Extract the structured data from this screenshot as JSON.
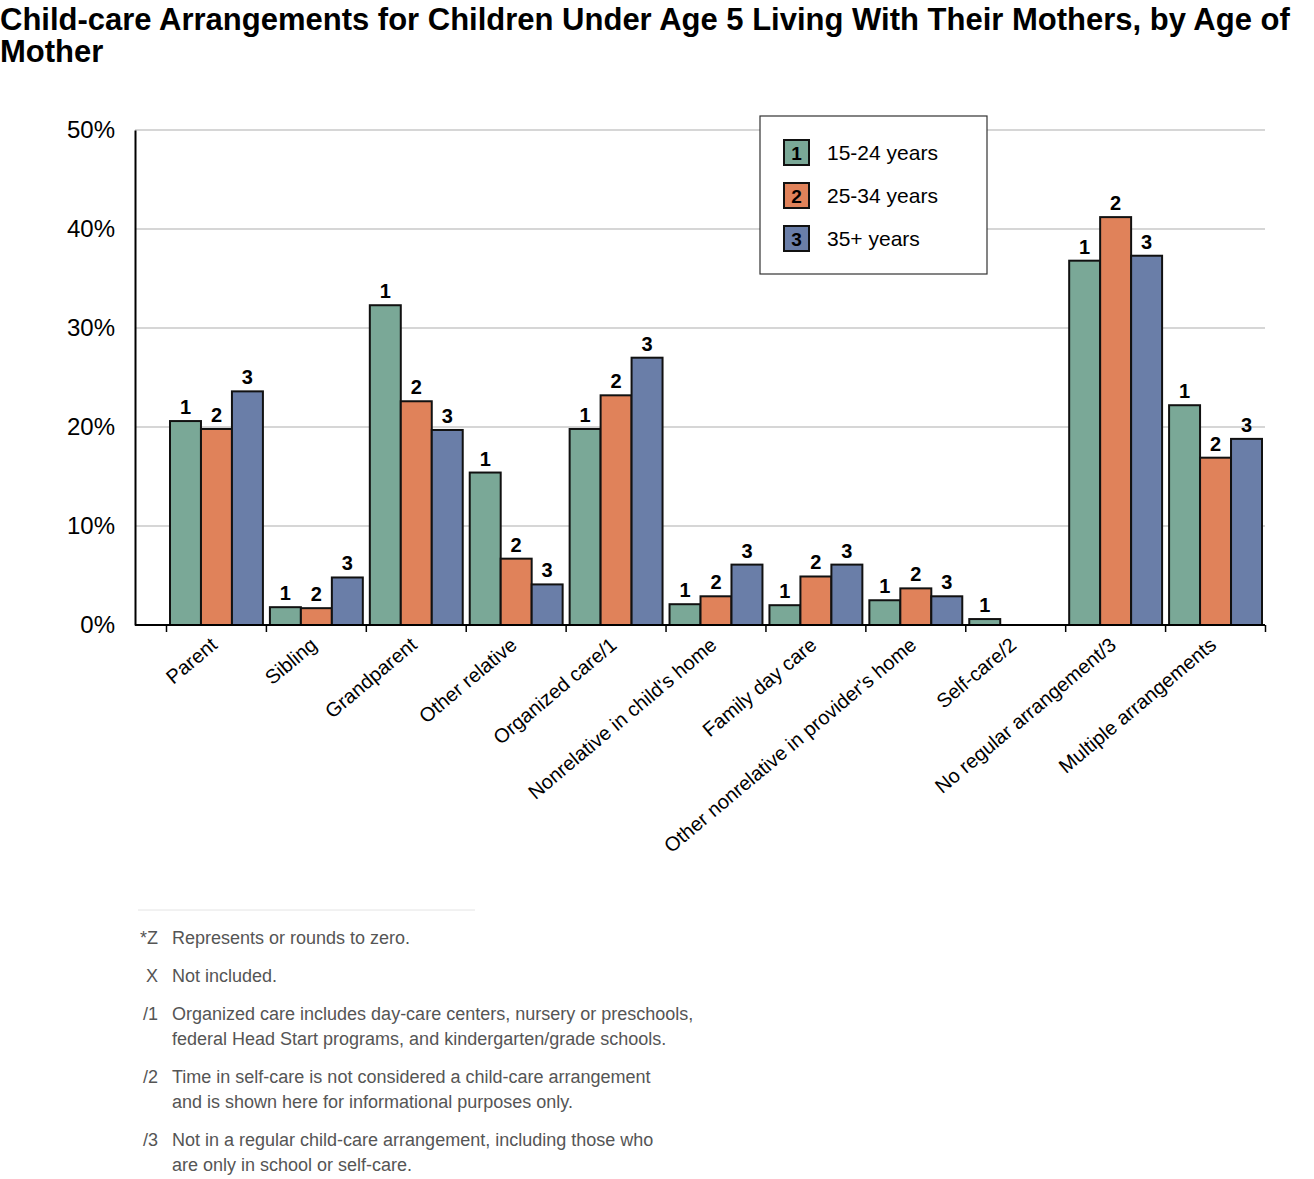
{
  "chart_data": {
    "type": "bar",
    "title": "Child-care Arrangements for Children Under Age 5 Living With Their Mothers, by Age of Mother",
    "categories": [
      "Parent",
      "Sibling",
      "Grandparent",
      "Other relative",
      "Organized care/1",
      "Nonrelative in child's home",
      "Family day care",
      "Other nonrelative in provider's home",
      "Self-care/2",
      "No regular arrangement/3",
      "Multiple arrangements"
    ],
    "series": [
      {
        "name": "15-24 years",
        "label": "1",
        "color": "#7aa897",
        "values": [
          20.6,
          1.8,
          32.3,
          15.4,
          19.8,
          2.1,
          2.0,
          2.5,
          0.6,
          36.8,
          22.2
        ]
      },
      {
        "name": "25-34 years",
        "label": "2",
        "color": "#e0825a",
        "values": [
          19.8,
          1.7,
          22.6,
          6.7,
          23.2,
          2.9,
          4.9,
          3.7,
          0,
          41.2,
          16.9
        ]
      },
      {
        "name": "35+ years",
        "label": "3",
        "color": "#6a7ea8",
        "values": [
          23.6,
          4.8,
          19.7,
          4.1,
          27.0,
          6.1,
          6.1,
          2.9,
          0,
          37.3,
          18.8
        ]
      }
    ],
    "ylim": [
      0,
      50
    ],
    "yticks": [
      {
        "value": 0,
        "label": "0%"
      },
      {
        "value": 10,
        "label": "10%"
      },
      {
        "value": 20,
        "label": "20%"
      },
      {
        "value": 30,
        "label": "30%"
      },
      {
        "value": 40,
        "label": "40%"
      },
      {
        "value": 50,
        "label": "50%"
      }
    ],
    "grid": true,
    "legend": "top-right",
    "notes": [
      {
        "symbol": "*Z",
        "lines": [
          "Represents or rounds to zero."
        ]
      },
      {
        "symbol": "X",
        "lines": [
          "Not included."
        ]
      },
      {
        "symbol": "/1",
        "lines": [
          "Organized care includes day-care centers, nursery or preschools,",
          "federal Head Start programs, and kindergarten/grade schools."
        ]
      },
      {
        "symbol": "/2",
        "lines": [
          "Time in self-care is not considered a child-care arrangement",
          "and is shown here for informational purposes only."
        ]
      },
      {
        "symbol": "/3",
        "lines": [
          "Not in a regular child-care arrangement, including those who",
          "are only in school or self-care."
        ]
      }
    ]
  }
}
